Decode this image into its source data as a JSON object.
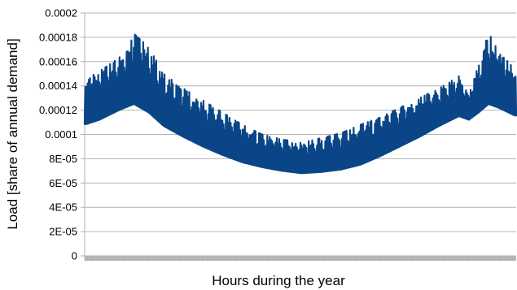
{
  "chart_data": {
    "type": "line",
    "title": "",
    "xlabel": "Hours during the year",
    "ylabel": "Load [share of annual demand]",
    "ylim": [
      0,
      0.0002
    ],
    "yticks": [
      {
        "value": 0,
        "label": "0"
      },
      {
        "value": 2e-05,
        "label": "2E-05"
      },
      {
        "value": 4e-05,
        "label": "4E-05"
      },
      {
        "value": 6e-05,
        "label": "6E-05"
      },
      {
        "value": 8e-05,
        "label": "8E-05"
      },
      {
        "value": 0.0001,
        "label": "0.0001"
      },
      {
        "value": 0.00012,
        "label": "0.00012"
      },
      {
        "value": 0.00014,
        "label": "0.00014"
      },
      {
        "value": 0.00016,
        "label": "0.00016"
      },
      {
        "value": 0.00018,
        "label": "0.00018"
      },
      {
        "value": 0.0002,
        "label": "0.0002"
      }
    ],
    "xlim": [
      0,
      8760
    ],
    "grid": "horizontal",
    "legend": "none",
    "color": "#0a4587",
    "envelope": {
      "x": [
        0,
        300,
        700,
        1000,
        1300,
        1600,
        2000,
        2400,
        2800,
        3200,
        3600,
        4000,
        4400,
        4800,
        5200,
        5600,
        6000,
        6400,
        6800,
        7200,
        7600,
        7800,
        8000,
        8200,
        8400,
        8760
      ],
      "low": [
        0.000108,
        0.000112,
        0.00012,
        0.000125,
        0.000118,
        0.000107,
        9.8e-05,
        9e-05,
        8.3e-05,
        7.7e-05,
        7.3e-05,
        7e-05,
        6.8e-05,
        6.9e-05,
        7.1e-05,
        7.5e-05,
        8.2e-05,
        9e-05,
        9.8e-05,
        0.000107,
        0.000115,
        0.000112,
        0.000118,
        0.000125,
        0.000122,
        0.000115
      ],
      "high": [
        0.000145,
        0.000152,
        0.000163,
        0.000183,
        0.000172,
        0.00015,
        0.000138,
        0.000128,
        0.000118,
        0.000108,
        0.0001,
        9.6e-05,
        9.3e-05,
        9.7e-05,
        0.000101,
        0.000108,
        0.000114,
        0.000122,
        0.00013,
        0.000138,
        0.000148,
        0.000132,
        0.000158,
        0.000184,
        0.000168,
        0.000153
      ]
    }
  }
}
